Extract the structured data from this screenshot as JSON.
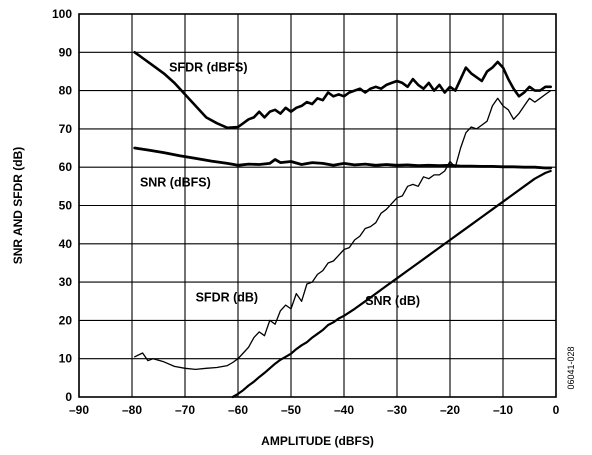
{
  "chart_data": {
    "type": "line",
    "title": "",
    "xlabel": "AMPLITUDE (dBFS)",
    "ylabel": "SNR AND SFDR (dB)",
    "xlim": [
      -90,
      0
    ],
    "ylim": [
      0,
      100
    ],
    "x_ticks": [
      -90,
      -80,
      -70,
      -60,
      -50,
      -40,
      -30,
      -20,
      -10,
      0
    ],
    "y_ticks": [
      0,
      10,
      20,
      30,
      40,
      50,
      60,
      70,
      80,
      90,
      100
    ],
    "x_tick_labels": [
      "–90",
      "–80",
      "–70",
      "–60",
      "–50",
      "–40",
      "–30",
      "–20",
      "–10",
      "0"
    ],
    "y_tick_labels": [
      "0",
      "10",
      "20",
      "30",
      "40",
      "50",
      "60",
      "70",
      "80",
      "90",
      "100"
    ],
    "grid": true,
    "figure_code": "06041-028",
    "series": [
      {
        "name": "SFDR (dBFS)",
        "x": [
          -79.5,
          -78,
          -76,
          -74,
          -72,
          -70,
          -68,
          -66,
          -64,
          -62,
          -60,
          -59,
          -58,
          -57,
          -56,
          -55,
          -54,
          -53,
          -52,
          -51,
          -50,
          -49,
          -48,
          -47,
          -46,
          -45,
          -44,
          -43,
          -42,
          -41,
          -40,
          -39,
          -38,
          -37,
          -36,
          -35,
          -34,
          -33,
          -32,
          -31,
          -30,
          -29,
          -28,
          -27,
          -26,
          -25,
          -24,
          -23,
          -22,
          -21,
          -20,
          -19,
          -18,
          -17,
          -16,
          -15,
          -14,
          -13,
          -12,
          -11,
          -10,
          -9,
          -8,
          -7,
          -6,
          -5,
          -4,
          -3,
          -2,
          -1
        ],
        "y": [
          90,
          88.5,
          86.5,
          84.5,
          82,
          79,
          76,
          73,
          71.5,
          70.3,
          70.5,
          71.5,
          72.5,
          73,
          74.5,
          73,
          74.5,
          75,
          74,
          75.5,
          74.5,
          75.5,
          76,
          77,
          76.5,
          78,
          77.5,
          79.5,
          78.5,
          79,
          78.5,
          79.5,
          80,
          80.5,
          79.5,
          80.5,
          81,
          80.5,
          81.5,
          82,
          82.5,
          82,
          81,
          83,
          81.5,
          80.5,
          82,
          80,
          81.5,
          79.5,
          81,
          80,
          83,
          86,
          84.5,
          83.5,
          82.5,
          85,
          86,
          87.5,
          86,
          83,
          80.5,
          78.5,
          79.5,
          81,
          80,
          80,
          81,
          81
        ]
      },
      {
        "name": "SNR (dBFS)",
        "x": [
          -79.5,
          -77,
          -74,
          -71,
          -68,
          -65,
          -62,
          -60,
          -58,
          -56,
          -54,
          -53,
          -52,
          -50,
          -48,
          -46,
          -44,
          -42,
          -40,
          -38,
          -36,
          -34,
          -32,
          -30,
          -28,
          -26,
          -24,
          -22,
          -20,
          -18,
          -16,
          -14,
          -12,
          -10,
          -8,
          -6,
          -4,
          -2,
          -1
        ],
        "y": [
          65,
          64.5,
          63.8,
          63,
          62.3,
          61.6,
          61,
          60.5,
          60.8,
          60.7,
          61,
          62,
          61.2,
          61.5,
          60.7,
          61.2,
          61,
          60.5,
          61,
          60.6,
          60.8,
          60.5,
          60.7,
          60.5,
          60.6,
          60.4,
          60.5,
          60.4,
          60.5,
          60.3,
          60.3,
          60.2,
          60.2,
          60.1,
          60.1,
          60,
          60,
          59.8,
          59.8
        ]
      },
      {
        "name": "SFDR (dB)",
        "x": [
          -79.5,
          -78,
          -77,
          -76,
          -74,
          -72,
          -70,
          -68,
          -66,
          -64,
          -62,
          -61,
          -60,
          -59,
          -58,
          -57,
          -56,
          -55,
          -54,
          -53,
          -52,
          -51,
          -50,
          -49,
          -48,
          -47,
          -46,
          -45,
          -44,
          -43,
          -42,
          -41,
          -40,
          -39,
          -38,
          -37,
          -36,
          -35,
          -34,
          -33,
          -32,
          -31,
          -30,
          -29,
          -28,
          -27,
          -26,
          -25,
          -24,
          -23,
          -22,
          -21,
          -20,
          -19,
          -18,
          -17,
          -16,
          -15,
          -14,
          -13,
          -12,
          -11,
          -10,
          -9,
          -8,
          -7,
          -6,
          -5,
          -4,
          -3,
          -2,
          -1
        ],
        "y": [
          10.5,
          11.5,
          9.5,
          10,
          9.2,
          8,
          7.5,
          7.2,
          7.5,
          7.7,
          8.2,
          9,
          10,
          11.5,
          13,
          15.5,
          17,
          16,
          20,
          19,
          22.5,
          24,
          23,
          27,
          25,
          29.5,
          30,
          32,
          33,
          35,
          35.5,
          37,
          38.5,
          39,
          41,
          42,
          44,
          44.5,
          45.5,
          48,
          49,
          50.5,
          52,
          52.5,
          55,
          55.5,
          55,
          57.5,
          57,
          58,
          58,
          59,
          61.5,
          60,
          65,
          69,
          70.5,
          70,
          71,
          72,
          76,
          78,
          76,
          75,
          72.5,
          74,
          76,
          78,
          77,
          78,
          79,
          80
        ]
      },
      {
        "name": "SNR (dB)",
        "x": [
          -61,
          -60,
          -59,
          -58,
          -57,
          -56,
          -55,
          -54,
          -53,
          -52,
          -51,
          -50,
          -49,
          -48,
          -47,
          -46,
          -45,
          -44,
          -43,
          -42,
          -41,
          -40,
          -38,
          -36,
          -34,
          -32,
          -30,
          -28,
          -26,
          -24,
          -22,
          -20,
          -18,
          -16,
          -14,
          -12,
          -10,
          -8,
          -6,
          -4,
          -2,
          -1
        ],
        "y": [
          0,
          0.8,
          1.8,
          3,
          4,
          5.2,
          6.3,
          7.5,
          8.7,
          9.7,
          10.5,
          11.3,
          12.5,
          13.5,
          14.3,
          15.5,
          16.5,
          17.5,
          18.8,
          19.5,
          20.5,
          21.2,
          23,
          25,
          27,
          29,
          31,
          33,
          35,
          37,
          39,
          41,
          43,
          45,
          47,
          49,
          51,
          53,
          55,
          57,
          58.5,
          59
        ]
      }
    ],
    "series_labels": [
      "SFDR (dBFS)",
      "SNR (dBFS)",
      "SFDR (dB)",
      "SNR (dB)"
    ],
    "annotation_anchors": [
      {
        "text": "SFDR (dBFS)",
        "x": -73,
        "y": 85
      },
      {
        "text": "SNR (dBFS)",
        "x": -78.5,
        "y": 55
      },
      {
        "text": "SFDR (dB)",
        "x": -68,
        "y": 25
      },
      {
        "text": "SNR (dB)",
        "x": -36,
        "y": 24
      }
    ]
  }
}
